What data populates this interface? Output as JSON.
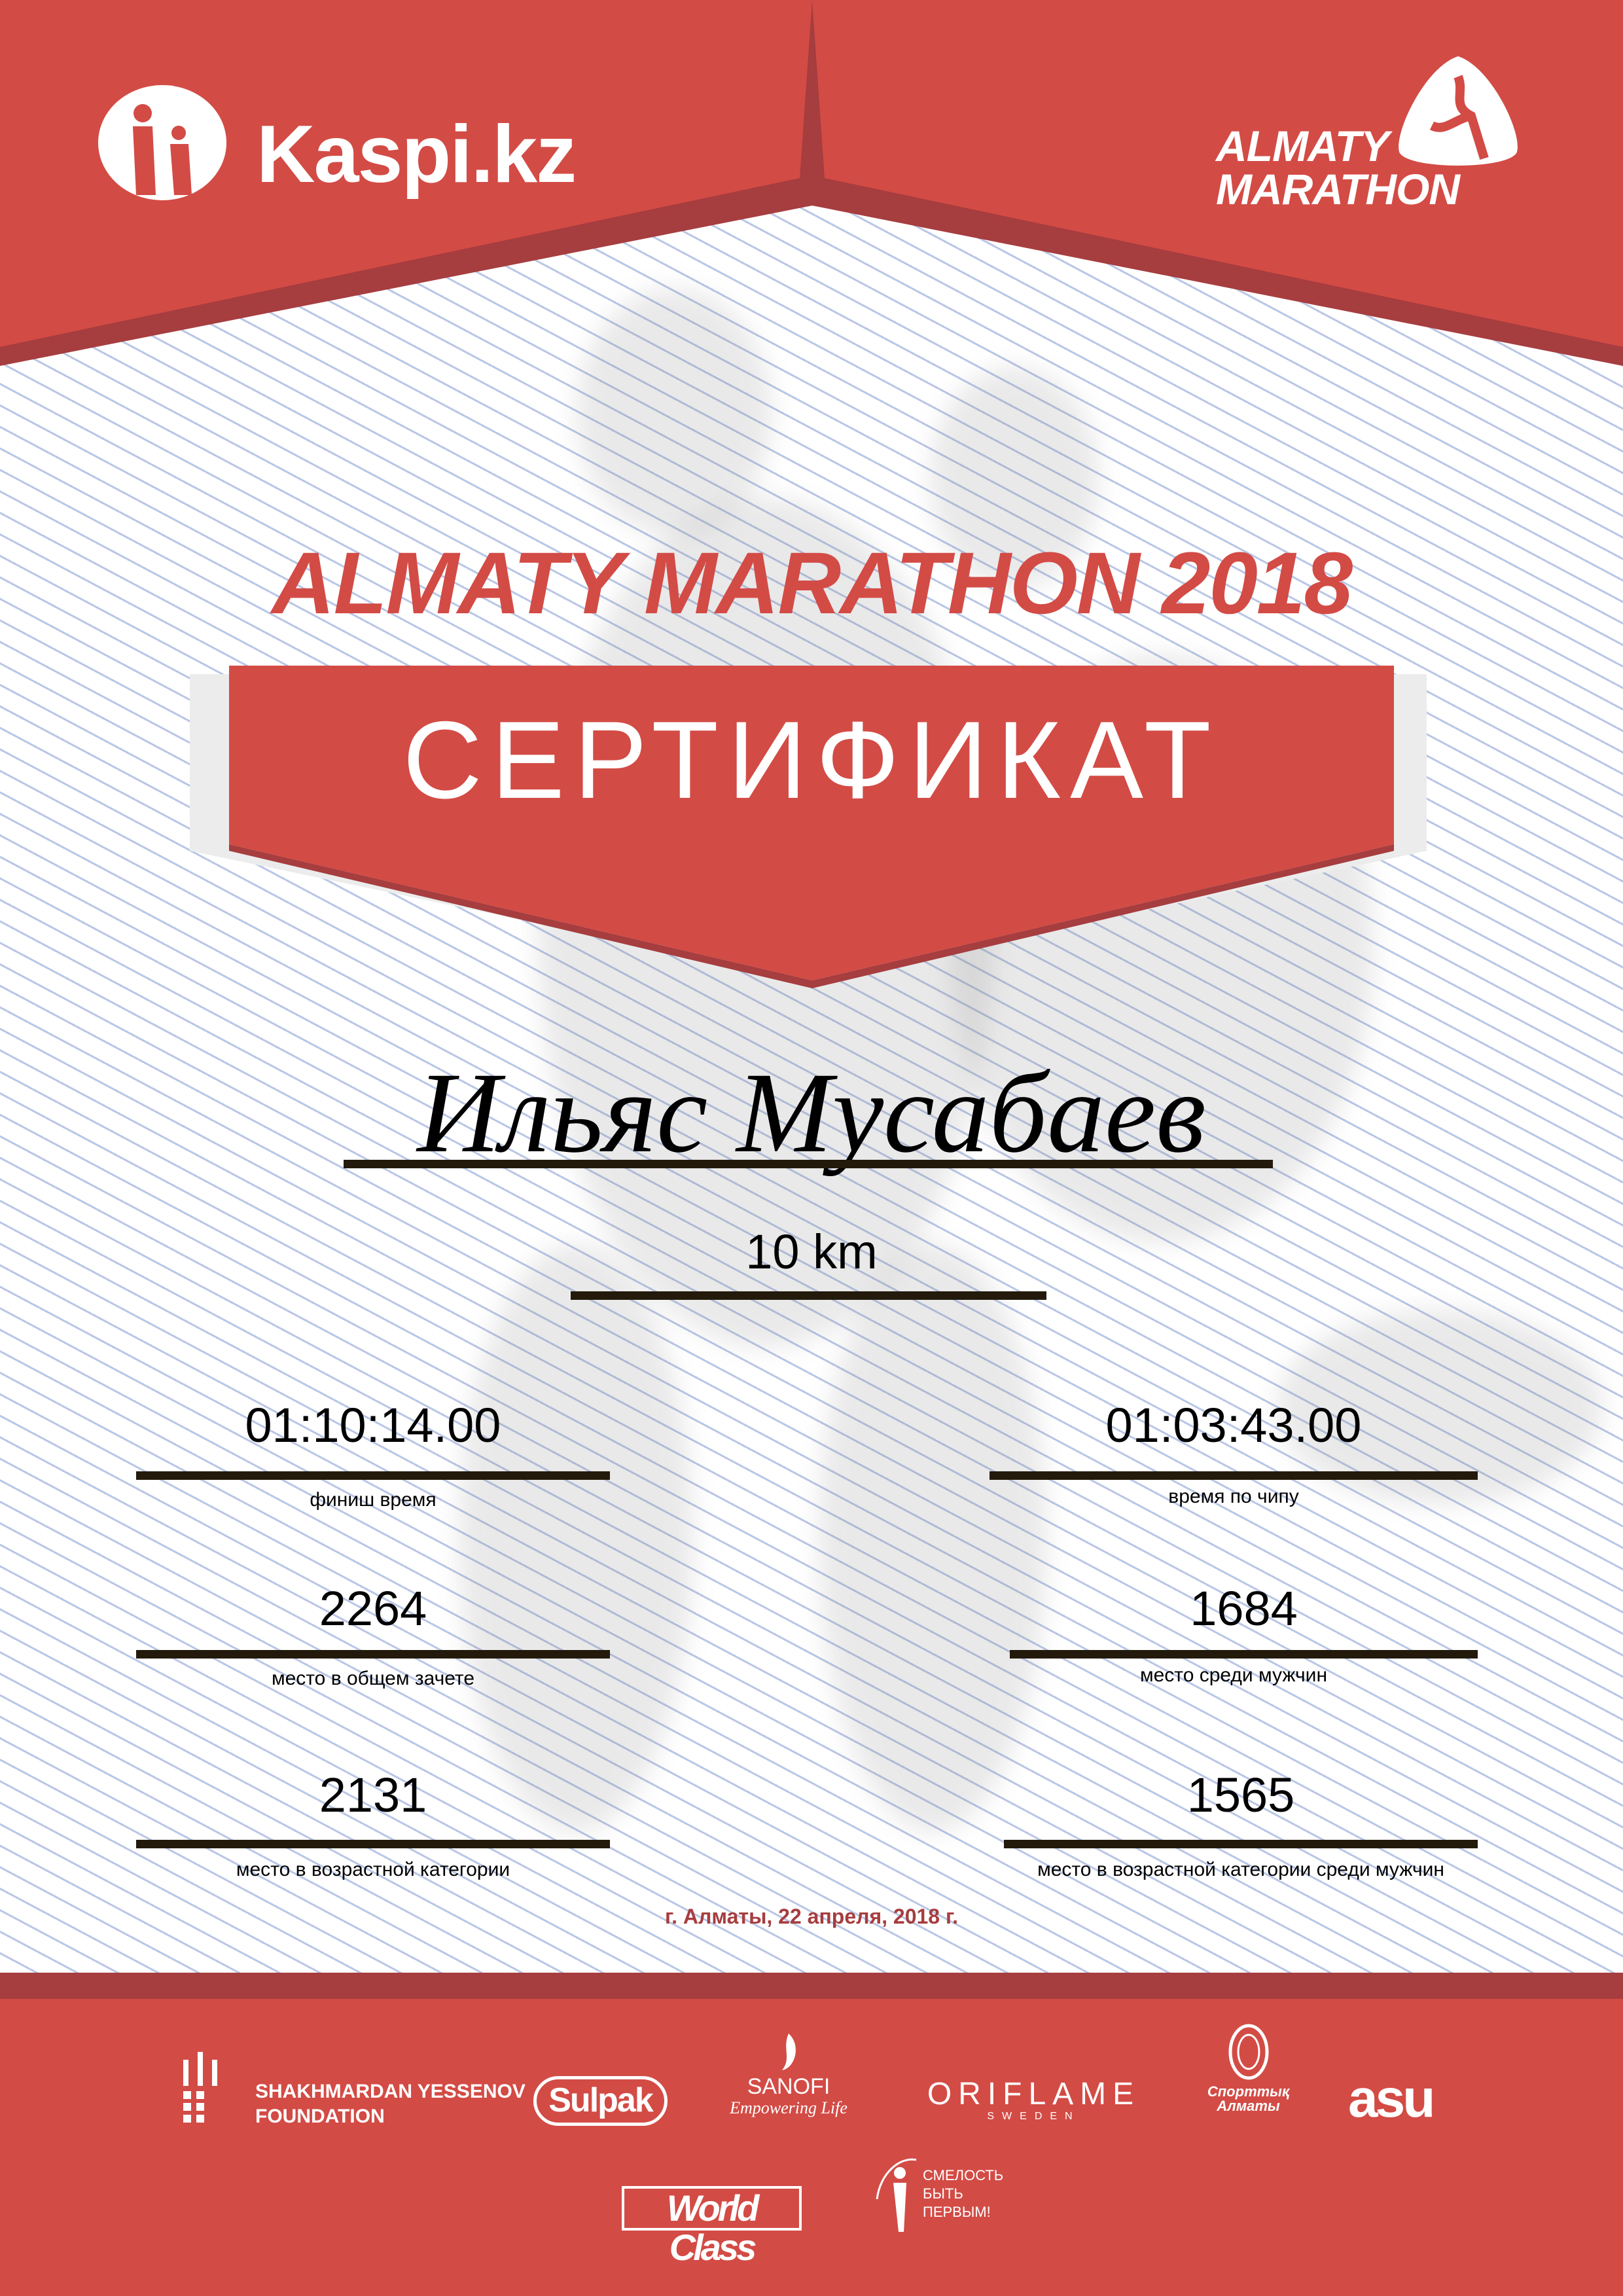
{
  "colors": {
    "brand_red": "#d34b45",
    "dark_red": "#a63d3f",
    "line": "#231a0c"
  },
  "header": {
    "left_logo": "Kaspi.kz",
    "right_logo_line1": "ALMATY",
    "right_logo_line2": "MARATHON"
  },
  "title": "ALMATY MARATHON 2018",
  "banner": "СЕРТИФИКАТ",
  "participant": {
    "name": "Ильяс Мусабаев",
    "distance": "10 km"
  },
  "stats": [
    {
      "value": "01:10:14.00",
      "label": "финиш время"
    },
    {
      "value": "01:03:43.00",
      "label": "время по чипу"
    },
    {
      "value": "2264",
      "label": "место в общем зачете"
    },
    {
      "value": "1684",
      "label": "место среди мужчин"
    },
    {
      "value": "2131",
      "label": "место в возрастной категории"
    },
    {
      "value": "1565",
      "label": "место в возрастной категории среди мужчин"
    }
  ],
  "date": "г. Алматы, 22 апреля, 2018 г.",
  "sponsors": {
    "yessenov_1": "SHAKHMARDAN YESSENOV",
    "yessenov_2": "FOUNDATION",
    "sulpak": "Sulpak",
    "sanofi": "SANOFI",
    "sanofi_tag": "Empowering Life",
    "oriflame": "ORIFLAME",
    "oriflame_sub": "SWEDEN",
    "sport_almaty_1": "Спорттық",
    "sport_almaty_2": "Алматы",
    "asu": "asu",
    "worldclass": "World Class",
    "fund_1": "СМЕЛОСТЬ",
    "fund_2": "БЫТЬ",
    "fund_3": "ПЕРВЫМ!"
  }
}
